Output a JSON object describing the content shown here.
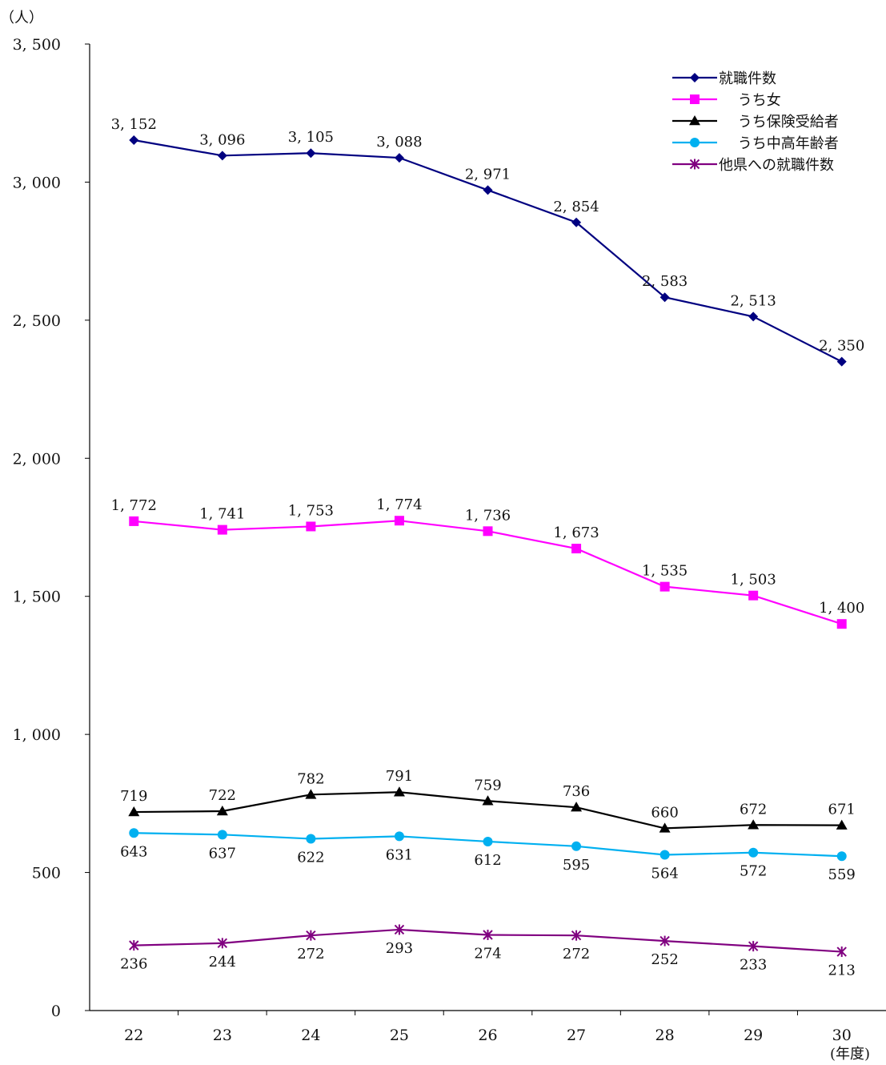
{
  "chart_data": {
    "type": "line",
    "y_unit": "（人）",
    "x_unit": "(年度)",
    "categories": [
      "22",
      "23",
      "24",
      "25",
      "26",
      "27",
      "28",
      "29",
      "30"
    ],
    "ylim": [
      0,
      3500
    ],
    "yticks": [
      0,
      500,
      1000,
      1500,
      2000,
      2500,
      3000,
      3500
    ],
    "ytick_labels": [
      "0",
      "500",
      "1, 000",
      "1, 500",
      "2, 000",
      "2, 500",
      "3, 000",
      "3, 500"
    ],
    "grid": false,
    "legend_position": "top-right",
    "series": [
      {
        "name": "就職件数",
        "color": "#000080",
        "marker": "diamond",
        "values": [
          3152,
          3096,
          3105,
          3088,
          2971,
          2854,
          2583,
          2513,
          2350
        ],
        "labels": [
          "3, 152",
          "3, 096",
          "3, 105",
          "3, 088",
          "2, 971",
          "2, 854",
          "2, 583",
          "2, 513",
          "2, 350"
        ],
        "label_position": "above"
      },
      {
        "name": "うち女",
        "color": "#ff00ff",
        "marker": "square",
        "values": [
          1772,
          1741,
          1753,
          1774,
          1736,
          1673,
          1535,
          1503,
          1400
        ],
        "labels": [
          "1, 772",
          "1, 741",
          "1, 753",
          "1, 774",
          "1, 736",
          "1, 673",
          "1, 535",
          "1, 503",
          "1, 400"
        ],
        "label_position": "above"
      },
      {
        "name": "うち保険受給者",
        "color": "#000000",
        "marker": "triangle",
        "values": [
          719,
          722,
          782,
          791,
          759,
          736,
          660,
          672,
          671
        ],
        "labels": [
          "719",
          "722",
          "782",
          "791",
          "759",
          "736",
          "660",
          "672",
          "671"
        ],
        "label_position": "above"
      },
      {
        "name": "うち中高年齢者",
        "color": "#00b0f0",
        "marker": "circle",
        "values": [
          643,
          637,
          622,
          631,
          612,
          595,
          564,
          572,
          559
        ],
        "labels": [
          "643",
          "637",
          "622",
          "631",
          "612",
          "595",
          "564",
          "572",
          "559"
        ],
        "label_position": "below"
      },
      {
        "name": "他県への就職件数",
        "color": "#800080",
        "marker": "star",
        "values": [
          236,
          244,
          272,
          293,
          274,
          272,
          252,
          233,
          213
        ],
        "labels": [
          "236",
          "244",
          "272",
          "293",
          "274",
          "272",
          "252",
          "233",
          "213"
        ],
        "label_position": "below"
      }
    ]
  }
}
